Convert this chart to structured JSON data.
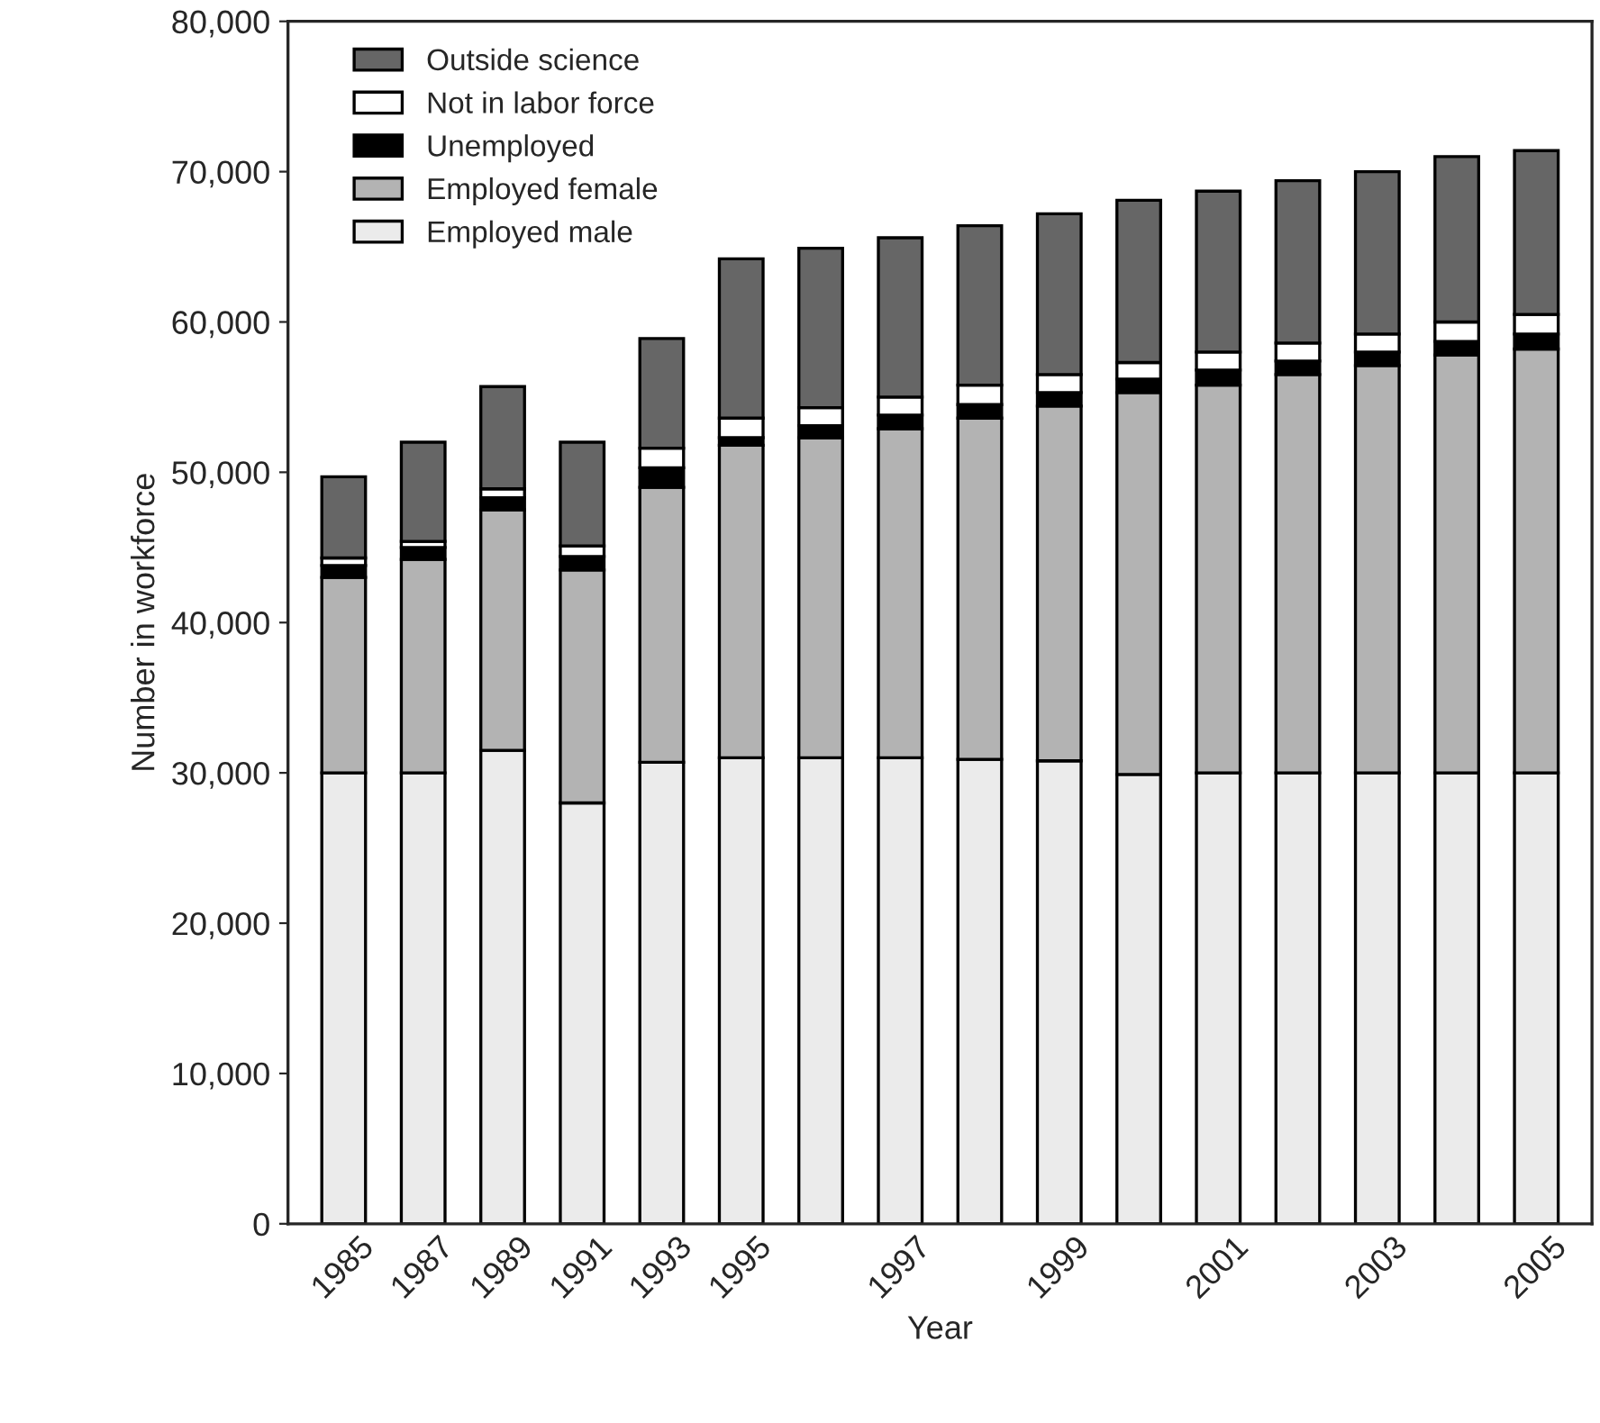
{
  "chart_data": {
    "type": "bar",
    "stacked": true,
    "xlabel": "Year",
    "ylabel": "Number in workforce",
    "categories": [
      "1985",
      "1987",
      "1989",
      "1991",
      "1993",
      "1995",
      null,
      "1997",
      null,
      "1999",
      null,
      "2001",
      null,
      "2003",
      null,
      "2005"
    ],
    "series": [
      {
        "name": "Employed male",
        "color": "#ebebeb",
        "values": [
          30000,
          30000,
          31500,
          28000,
          30700,
          31000,
          31000,
          31000,
          30900,
          30800,
          29900,
          30000,
          30000,
          30000,
          30000,
          30000
        ]
      },
      {
        "name": "Employed female",
        "color": "#b3b3b3",
        "values": [
          13000,
          14200,
          16000,
          15500,
          18300,
          20800,
          21300,
          21900,
          22700,
          23600,
          25400,
          25800,
          26500,
          27100,
          27800,
          28200
        ]
      },
      {
        "name": "Unemployed",
        "color": "#000000",
        "values": [
          800,
          800,
          800,
          900,
          1300,
          500,
          800,
          900,
          900,
          900,
          900,
          1000,
          900,
          900,
          900,
          1000
        ]
      },
      {
        "name": "Not in labor force",
        "color": "#ffffff",
        "values": [
          500,
          400,
          600,
          700,
          1300,
          1300,
          1200,
          1200,
          1300,
          1200,
          1100,
          1200,
          1200,
          1200,
          1300,
          1300
        ]
      },
      {
        "name": "Outside science",
        "color": "#666666",
        "values": [
          5400,
          6600,
          6800,
          6900,
          7300,
          10600,
          10600,
          10600,
          10600,
          10700,
          10800,
          10700,
          10800,
          10800,
          11000,
          10900
        ]
      }
    ],
    "ylim": [
      0,
      80000
    ],
    "yticks": [
      {
        "value": 0,
        "label": "0"
      },
      {
        "value": 10000,
        "label": "10,000"
      },
      {
        "value": 20000,
        "label": "20,000"
      },
      {
        "value": 30000,
        "label": "30,000"
      },
      {
        "value": 40000,
        "label": "40,000"
      },
      {
        "value": 50000,
        "label": "50,000"
      },
      {
        "value": 60000,
        "label": "60,000"
      },
      {
        "value": 70000,
        "label": "70,000"
      },
      {
        "value": 80000,
        "label": "80,000"
      }
    ],
    "legend": "top left",
    "grid": false
  }
}
